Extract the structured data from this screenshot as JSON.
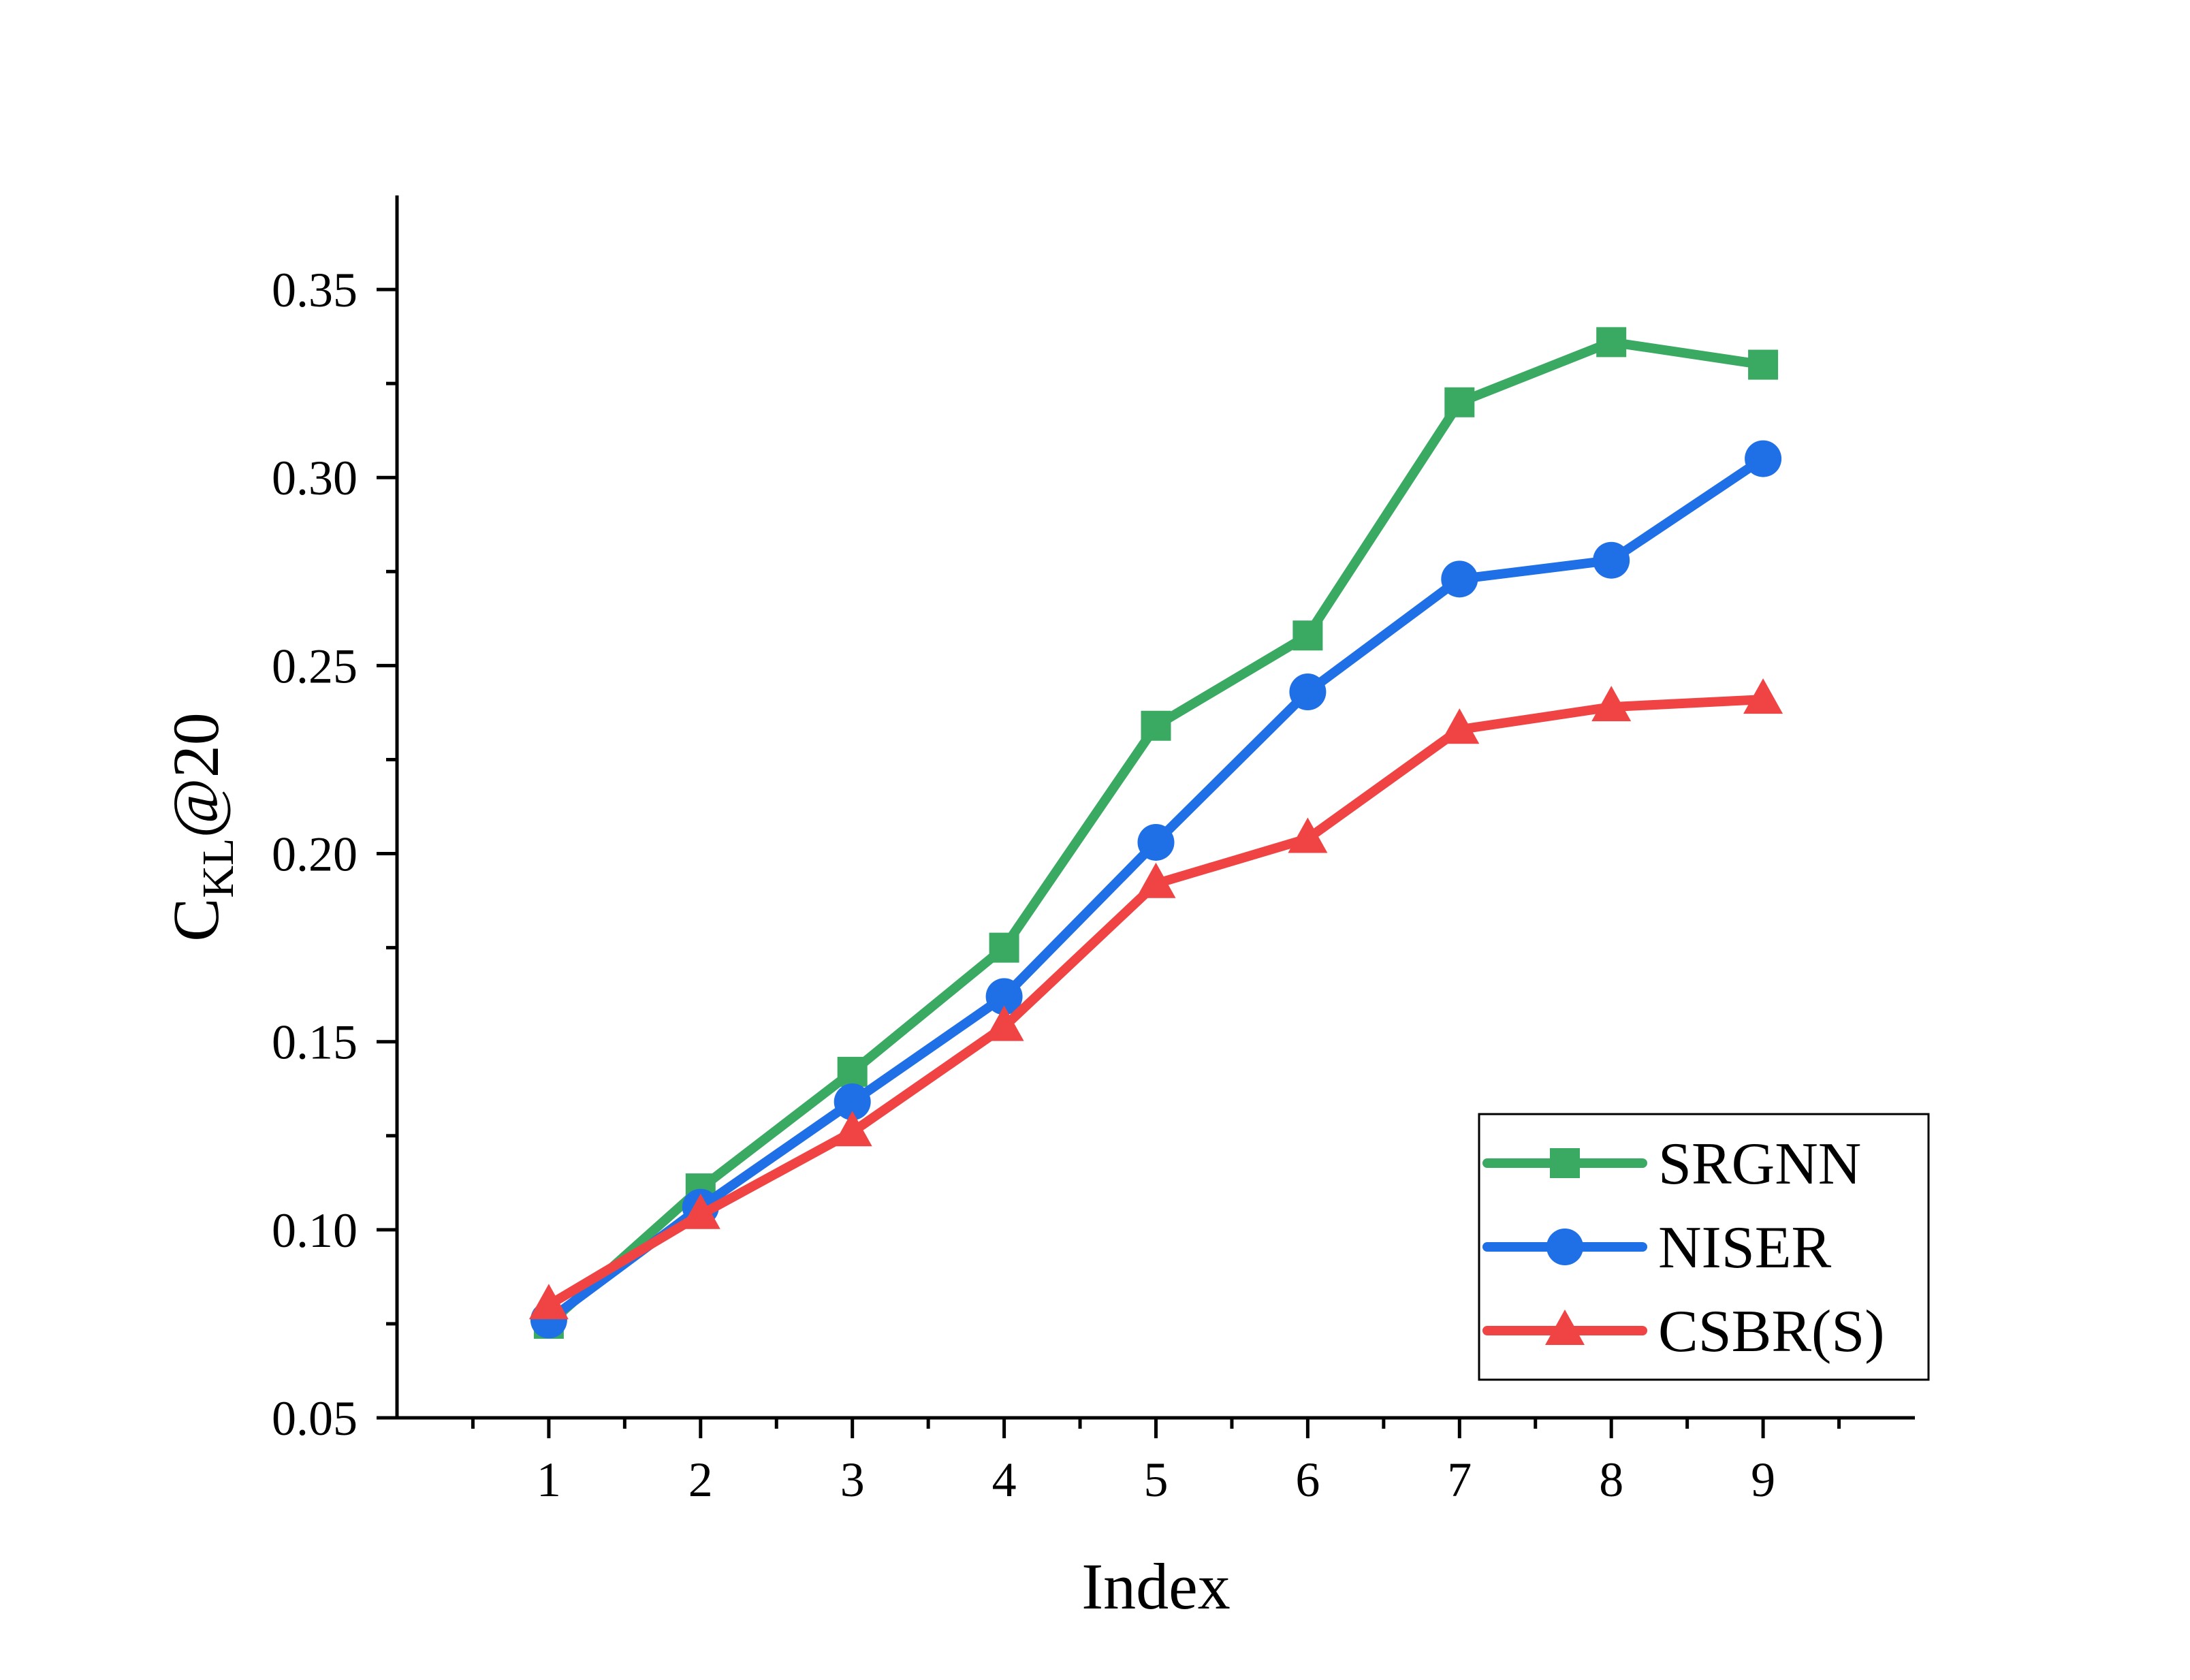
{
  "chart_data": {
    "type": "line",
    "title": "",
    "xlabel": "Index",
    "ylabel": {
      "base": "C",
      "subscript": "KL",
      "suffix": "@20"
    },
    "x": [
      1,
      2,
      3,
      4,
      5,
      6,
      7,
      8,
      9
    ],
    "x_tick_labels": [
      "1",
      "2",
      "3",
      "4",
      "5",
      "6",
      "7",
      "8",
      "9"
    ],
    "xlim": [
      0,
      10
    ],
    "ylim": [
      0.05,
      0.375
    ],
    "y_ticks": [
      0.05,
      0.1,
      0.15,
      0.2,
      0.25,
      0.3,
      0.35
    ],
    "y_tick_labels": [
      "0.05",
      "0.10",
      "0.15",
      "0.20",
      "0.25",
      "0.30",
      "0.35"
    ],
    "grid": false,
    "legend_position": "bottom-right",
    "series": [
      {
        "name": "SRGNN",
        "color": "#3aaa63",
        "marker": "square",
        "values": [
          0.075,
          0.111,
          0.142,
          0.175,
          0.234,
          0.258,
          0.32,
          0.336,
          0.33
        ]
      },
      {
        "name": "NISER",
        "color": "#1f6fe6",
        "marker": "circle",
        "values": [
          0.076,
          0.106,
          0.134,
          0.162,
          0.203,
          0.243,
          0.273,
          0.278,
          0.305
        ]
      },
      {
        "name": "CSBR(S)",
        "color": "#f04444",
        "marker": "triangle",
        "values": [
          0.08,
          0.104,
          0.126,
          0.154,
          0.192,
          0.204,
          0.233,
          0.239,
          0.241
        ]
      }
    ]
  }
}
